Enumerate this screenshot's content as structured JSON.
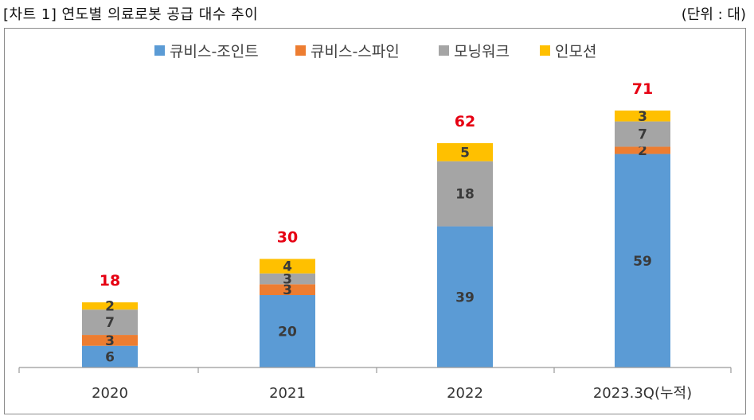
{
  "header": {
    "title": "[차트 1] 연도별 의료로봇 공급 대수 추이",
    "unit": "(단위 : 대)"
  },
  "colors": {
    "큐비스-조인트": "#5b9bd5",
    "큐비스-스파인": "#ed7d31",
    "모닝워크": "#a5a5a5",
    "인모션": "#ffc000",
    "total_label": "#e60012"
  },
  "chart_data": {
    "type": "bar",
    "stacked": true,
    "categories": [
      "2020",
      "2021",
      "2022",
      "2023.3Q(누적)"
    ],
    "series": [
      {
        "name": "큐비스-조인트",
        "values": [
          6,
          20,
          39,
          59
        ]
      },
      {
        "name": "큐비스-스파인",
        "values": [
          3,
          3,
          0,
          2
        ]
      },
      {
        "name": "모닝워크",
        "values": [
          7,
          3,
          18,
          7
        ]
      },
      {
        "name": "인모션",
        "values": [
          2,
          4,
          5,
          3
        ]
      }
    ],
    "totals": [
      18,
      30,
      62,
      71
    ],
    "legend_position": "top",
    "grid": false
  }
}
